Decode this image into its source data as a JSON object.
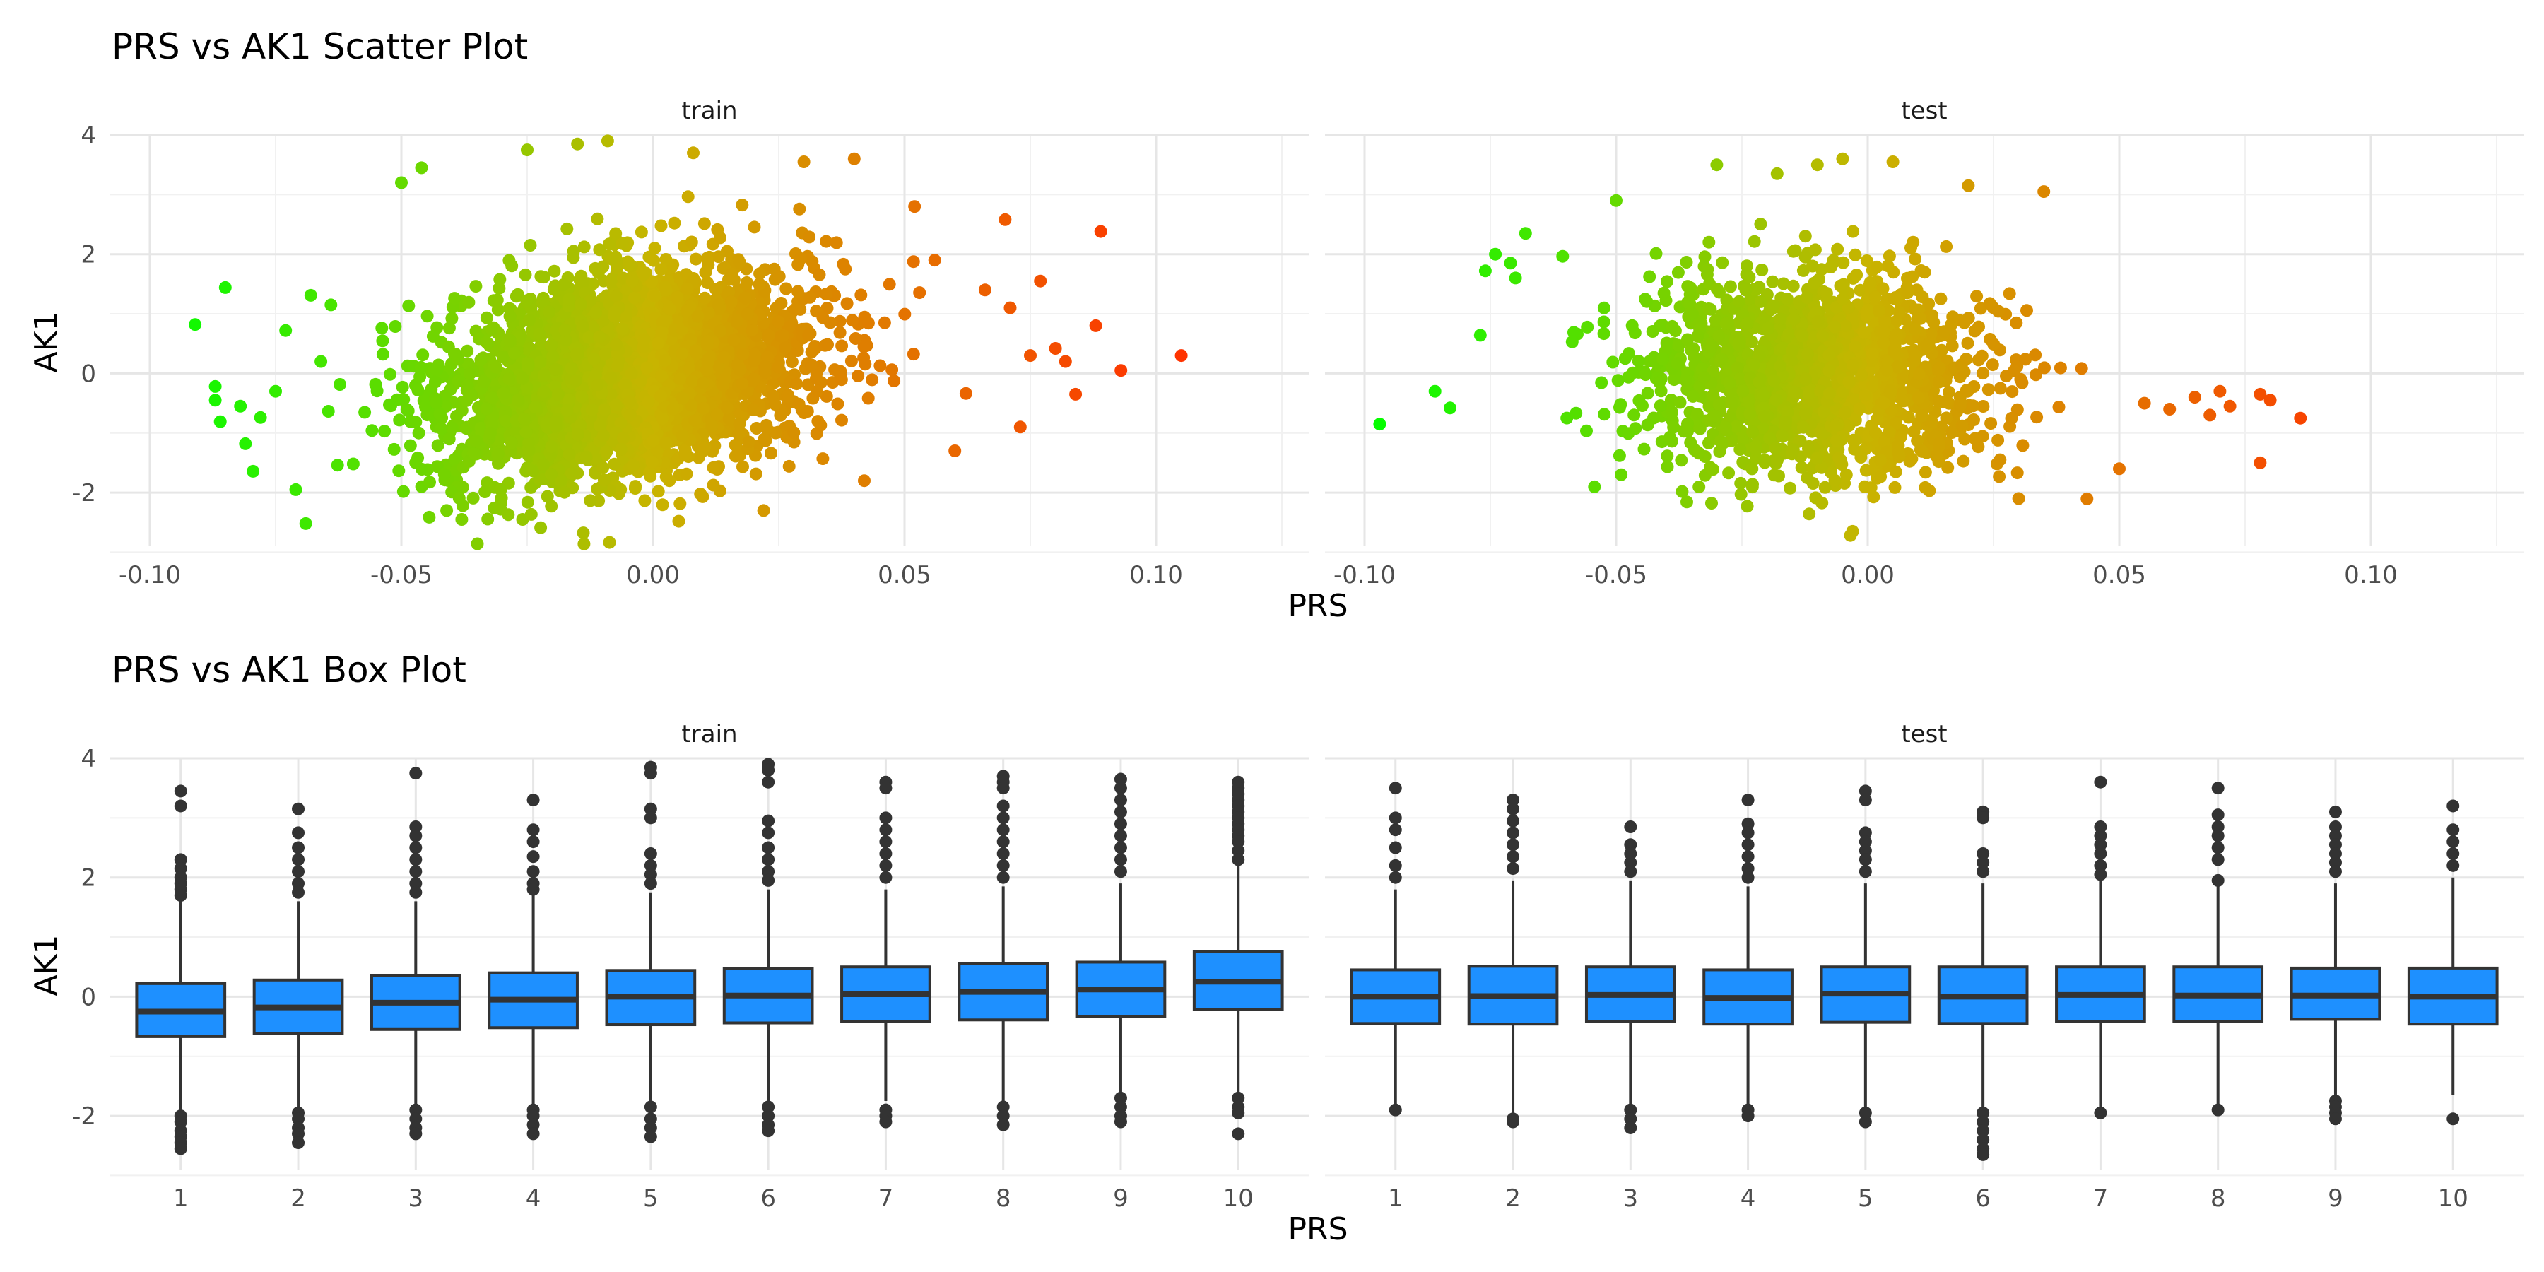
{
  "chart_data": [
    {
      "type": "scatter",
      "title": "PRS vs AK1 Scatter Plot",
      "xlabel": "PRS",
      "ylabel": "AK1",
      "panels": [
        "train",
        "test"
      ],
      "xlim": [
        -0.1,
        0.125
      ],
      "ylim": [
        -2.9,
        4.0
      ],
      "xticks": [
        -0.1,
        -0.05,
        0.0,
        0.05,
        0.1
      ],
      "xtick_labels": [
        "-0.10",
        "-0.05",
        "0.00",
        "0.05",
        "0.10"
      ],
      "yticks": [
        -2,
        0,
        2,
        4
      ],
      "ytick_labels": [
        "-2",
        "0",
        "2",
        "4"
      ],
      "grid": true,
      "color_scale": {
        "low": "#00ff00",
        "mid": "#c8b400",
        "high": "#ff3300",
        "mapped_to": "PRS"
      },
      "series": [
        {
          "name": "train",
          "cloud": {
            "x_mean": -0.005,
            "x_sd": 0.018,
            "y_mean": 0.0,
            "y_sd": 0.85,
            "slope": 12,
            "n": 3200
          },
          "points": [
            {
              "x": -0.091,
              "y": 0.82
            },
            {
              "x": -0.087,
              "y": -0.22
            },
            {
              "x": -0.087,
              "y": -0.45
            },
            {
              "x": -0.086,
              "y": -0.81
            },
            {
              "x": -0.085,
              "y": 1.44
            },
            {
              "x": -0.082,
              "y": -0.55
            },
            {
              "x": -0.081,
              "y": -1.18
            },
            {
              "x": -0.078,
              "y": -0.74
            },
            {
              "x": -0.075,
              "y": -0.3
            },
            {
              "x": -0.073,
              "y": 0.72
            },
            {
              "x": -0.071,
              "y": -1.95
            },
            {
              "x": -0.069,
              "y": -2.52
            },
            {
              "x": -0.068,
              "y": 1.31
            },
            {
              "x": -0.066,
              "y": 0.2
            },
            {
              "x": -0.064,
              "y": 1.15
            },
            {
              "x": -0.05,
              "y": 3.2
            },
            {
              "x": -0.046,
              "y": 3.45
            },
            {
              "x": -0.041,
              "y": -2.3
            },
            {
              "x": -0.038,
              "y": -2.45
            },
            {
              "x": -0.025,
              "y": 3.75
            },
            {
              "x": -0.015,
              "y": 3.85
            },
            {
              "x": -0.009,
              "y": 3.9
            },
            {
              "x": 0.008,
              "y": 3.7
            },
            {
              "x": 0.022,
              "y": -2.3
            },
            {
              "x": 0.03,
              "y": 3.55
            },
            {
              "x": 0.04,
              "y": 3.6
            },
            {
              "x": 0.042,
              "y": -1.8
            },
            {
              "x": 0.052,
              "y": 2.8
            },
            {
              "x": 0.056,
              "y": 1.9
            },
            {
              "x": 0.06,
              "y": -1.3
            },
            {
              "x": 0.066,
              "y": 1.4
            },
            {
              "x": 0.07,
              "y": 2.58
            },
            {
              "x": 0.071,
              "y": 1.1
            },
            {
              "x": 0.073,
              "y": -0.9
            },
            {
              "x": 0.075,
              "y": 0.3
            },
            {
              "x": 0.077,
              "y": 1.55
            },
            {
              "x": 0.08,
              "y": 0.42
            },
            {
              "x": 0.082,
              "y": 0.2
            },
            {
              "x": 0.084,
              "y": -0.35
            },
            {
              "x": 0.088,
              "y": 0.8
            },
            {
              "x": 0.089,
              "y": 2.38
            },
            {
              "x": 0.093,
              "y": 0.05
            },
            {
              "x": 0.105,
              "y": 0.3
            }
          ]
        },
        {
          "name": "test",
          "cloud": {
            "x_mean": -0.01,
            "x_sd": 0.017,
            "y_mean": 0.0,
            "y_sd": 0.8,
            "slope": 0,
            "n": 1700
          },
          "points": [
            {
              "x": -0.097,
              "y": -0.85
            },
            {
              "x": -0.086,
              "y": -0.3
            },
            {
              "x": -0.083,
              "y": -0.58
            },
            {
              "x": -0.077,
              "y": 0.64
            },
            {
              "x": -0.076,
              "y": 1.72
            },
            {
              "x": -0.074,
              "y": 2.0
            },
            {
              "x": -0.071,
              "y": 1.85
            },
            {
              "x": -0.07,
              "y": 1.6
            },
            {
              "x": -0.068,
              "y": 2.35
            },
            {
              "x": -0.05,
              "y": 2.9
            },
            {
              "x": -0.049,
              "y": -1.7
            },
            {
              "x": -0.03,
              "y": 3.5
            },
            {
              "x": -0.018,
              "y": 3.35
            },
            {
              "x": -0.01,
              "y": 3.5
            },
            {
              "x": -0.005,
              "y": 3.6
            },
            {
              "x": -0.003,
              "y": -2.65
            },
            {
              "x": 0.005,
              "y": 3.55
            },
            {
              "x": 0.02,
              "y": 3.15
            },
            {
              "x": 0.03,
              "y": -2.1
            },
            {
              "x": 0.035,
              "y": 3.05
            },
            {
              "x": 0.05,
              "y": -1.6
            },
            {
              "x": 0.055,
              "y": -0.5
            },
            {
              "x": 0.06,
              "y": -0.6
            },
            {
              "x": 0.065,
              "y": -0.4
            },
            {
              "x": 0.068,
              "y": -0.7
            },
            {
              "x": 0.07,
              "y": -0.3
            },
            {
              "x": 0.072,
              "y": -0.55
            },
            {
              "x": 0.078,
              "y": -0.35
            },
            {
              "x": 0.078,
              "y": -1.5
            },
            {
              "x": 0.08,
              "y": -0.45
            },
            {
              "x": 0.086,
              "y": -0.75
            }
          ]
        }
      ]
    },
    {
      "type": "box",
      "title": "PRS vs AK1 Box Plot",
      "xlabel": "PRS",
      "ylabel": "AK1",
      "panels": [
        "train",
        "test"
      ],
      "categories": [
        "1",
        "2",
        "3",
        "4",
        "5",
        "6",
        "7",
        "8",
        "9",
        "10"
      ],
      "ylim": [
        -2.9,
        4.0
      ],
      "yticks": [
        -2,
        0,
        2,
        4
      ],
      "ytick_labels": [
        "-2",
        "0",
        "2",
        "4"
      ],
      "grid": true,
      "box_fill": "#1e90ff",
      "series": [
        {
          "name": "train",
          "boxes": [
            {
              "q1": -0.67,
              "median": -0.25,
              "q3": 0.22,
              "lower": -1.95,
              "upper": 1.6,
              "outliers": [
                3.45,
                3.2,
                2.3,
                2.15,
                2.0,
                1.9,
                1.8,
                1.7,
                -2.0,
                -2.1,
                -2.25,
                -2.35,
                -2.45,
                -2.55
              ]
            },
            {
              "q1": -0.62,
              "median": -0.18,
              "q3": 0.28,
              "lower": -1.9,
              "upper": 1.6,
              "outliers": [
                3.15,
                2.75,
                2.5,
                2.3,
                2.1,
                1.9,
                1.75,
                -1.95,
                -2.05,
                -2.2,
                -2.3,
                -2.45
              ]
            },
            {
              "q1": -0.55,
              "median": -0.1,
              "q3": 0.35,
              "lower": -1.85,
              "upper": 1.6,
              "outliers": [
                3.75,
                2.85,
                2.7,
                2.5,
                2.3,
                2.1,
                1.9,
                1.75,
                -1.9,
                -2.05,
                -2.2,
                -2.3
              ]
            },
            {
              "q1": -0.52,
              "median": -0.05,
              "q3": 0.4,
              "lower": -1.85,
              "upper": 1.7,
              "outliers": [
                3.3,
                2.8,
                2.6,
                2.35,
                2.1,
                1.9,
                1.8,
                -1.9,
                -2.0,
                -2.15,
                -2.3
              ]
            },
            {
              "q1": -0.47,
              "median": 0.0,
              "q3": 0.44,
              "lower": -1.8,
              "upper": 1.75,
              "outliers": [
                3.85,
                3.75,
                3.15,
                3.0,
                2.4,
                2.2,
                2.05,
                1.9,
                -1.85,
                -2.05,
                -2.2,
                -2.35
              ]
            },
            {
              "q1": -0.44,
              "median": 0.02,
              "q3": 0.47,
              "lower": -1.8,
              "upper": 1.8,
              "outliers": [
                3.9,
                3.8,
                3.6,
                2.95,
                2.75,
                2.5,
                2.3,
                2.1,
                1.95,
                -1.85,
                -2.0,
                -2.15,
                -2.25
              ]
            },
            {
              "q1": -0.42,
              "median": 0.04,
              "q3": 0.5,
              "lower": -1.75,
              "upper": 1.8,
              "outliers": [
                3.6,
                3.5,
                3.0,
                2.8,
                2.6,
                2.4,
                2.2,
                2.0,
                -1.9,
                -2.0,
                -2.1
              ]
            },
            {
              "q1": -0.39,
              "median": 0.08,
              "q3": 0.55,
              "lower": -1.75,
              "upper": 1.85,
              "outliers": [
                3.7,
                3.6,
                3.5,
                3.2,
                3.0,
                2.8,
                2.6,
                2.4,
                2.2,
                2.0,
                -1.85,
                -2.0,
                -2.15
              ]
            },
            {
              "q1": -0.33,
              "median": 0.12,
              "q3": 0.58,
              "lower": -1.7,
              "upper": 1.9,
              "outliers": [
                3.65,
                3.5,
                3.3,
                3.1,
                2.9,
                2.7,
                2.5,
                2.3,
                2.1,
                -1.7,
                -1.85,
                -2.0,
                -2.1
              ]
            },
            {
              "q1": -0.22,
              "median": 0.25,
              "q3": 0.76,
              "lower": -1.6,
              "upper": 2.2,
              "outliers": [
                3.6,
                3.5,
                3.4,
                3.3,
                3.2,
                3.1,
                3.0,
                2.9,
                2.8,
                2.7,
                2.6,
                2.45,
                2.3,
                -1.7,
                -1.85,
                -1.95,
                -2.3
              ]
            }
          ]
        },
        {
          "name": "test",
          "boxes": [
            {
              "q1": -0.45,
              "median": 0.0,
              "q3": 0.45,
              "lower": -1.85,
              "upper": 1.8,
              "outliers": [
                3.5,
                3.0,
                2.8,
                2.5,
                2.2,
                2.0,
                -1.9
              ]
            },
            {
              "q1": -0.46,
              "median": 0.01,
              "q3": 0.51,
              "lower": -1.95,
              "upper": 1.95,
              "outliers": [
                3.3,
                3.15,
                2.95,
                2.75,
                2.55,
                2.35,
                2.15,
                -2.05,
                -2.1
              ]
            },
            {
              "q1": -0.42,
              "median": 0.03,
              "q3": 0.5,
              "lower": -1.8,
              "upper": 1.95,
              "outliers": [
                2.85,
                2.55,
                2.4,
                2.25,
                2.1,
                -1.9,
                -2.05,
                -2.2
              ]
            },
            {
              "q1": -0.46,
              "median": -0.02,
              "q3": 0.45,
              "lower": -1.85,
              "upper": 1.85,
              "outliers": [
                3.3,
                2.9,
                2.75,
                2.55,
                2.35,
                2.15,
                2.0,
                -1.9,
                -2.0
              ]
            },
            {
              "q1": -0.43,
              "median": 0.05,
              "q3": 0.5,
              "lower": -1.85,
              "upper": 1.9,
              "outliers": [
                3.45,
                3.3,
                2.75,
                2.6,
                2.45,
                2.3,
                2.1,
                -1.95,
                -2.1
              ]
            },
            {
              "q1": -0.45,
              "median": 0.0,
              "q3": 0.5,
              "lower": -1.85,
              "upper": 1.9,
              "outliers": [
                3.1,
                3.0,
                2.4,
                2.25,
                2.1,
                -1.95,
                -2.1,
                -2.25,
                -2.4,
                -2.55,
                -2.65
              ]
            },
            {
              "q1": -0.42,
              "median": 0.03,
              "q3": 0.5,
              "lower": -1.85,
              "upper": 1.95,
              "outliers": [
                3.6,
                2.85,
                2.7,
                2.55,
                2.4,
                2.2,
                2.05,
                -1.95
              ]
            },
            {
              "q1": -0.42,
              "median": 0.02,
              "q3": 0.5,
              "lower": -1.85,
              "upper": 1.95,
              "outliers": [
                3.5,
                3.05,
                2.85,
                2.7,
                2.5,
                2.3,
                1.95,
                -1.9
              ]
            },
            {
              "q1": -0.38,
              "median": 0.02,
              "q3": 0.48,
              "lower": -1.7,
              "upper": 1.9,
              "outliers": [
                3.1,
                2.85,
                2.7,
                2.55,
                2.4,
                2.25,
                2.1,
                -1.75,
                -1.85,
                -1.95,
                -2.05
              ]
            },
            {
              "q1": -0.46,
              "median": 0.0,
              "q3": 0.48,
              "lower": -1.65,
              "upper": 2.0,
              "outliers": [
                3.2,
                2.8,
                2.6,
                2.4,
                2.2,
                -2.05
              ]
            }
          ]
        }
      ]
    }
  ]
}
